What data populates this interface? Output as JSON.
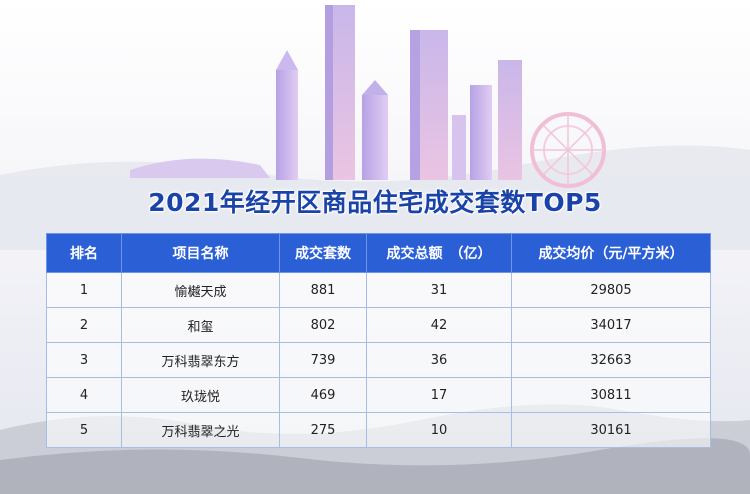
{
  "title": "2021年经开区商品住宅成交套数TOP5",
  "colors": {
    "header_bg": "#2a5fd6",
    "title": "#1a43a8",
    "border": "#a8bde6"
  },
  "chart_data": {
    "type": "table",
    "title": "2021年经开区商品住宅成交套数TOP5",
    "columns": [
      "排名",
      "项目名称",
      "成交套数",
      "成交总额　（亿）",
      "成交均价（元/平方米）"
    ],
    "rows": [
      [
        "1",
        "愉樾天成",
        "881",
        "31",
        "29805"
      ],
      [
        "2",
        "和玺",
        "802",
        "42",
        "34017"
      ],
      [
        "3",
        "万科翡翠东方",
        "739",
        "36",
        "32663"
      ],
      [
        "4",
        "玖珑悦",
        "469",
        "17",
        "30811"
      ],
      [
        "5",
        "万科翡翠之光",
        "275",
        "10",
        "30161"
      ]
    ]
  }
}
